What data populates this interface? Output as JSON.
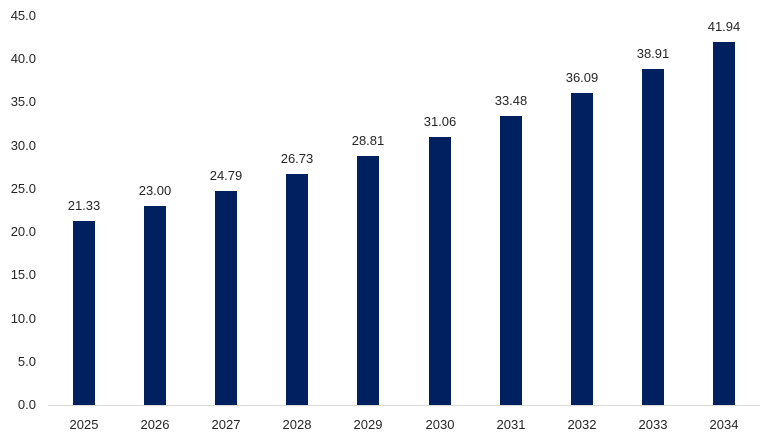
{
  "chart_data": {
    "type": "bar",
    "title": "",
    "xlabel": "",
    "ylabel": "",
    "categories": [
      "2025",
      "2026",
      "2027",
      "2028",
      "2029",
      "2030",
      "2031",
      "2032",
      "2033",
      "2034"
    ],
    "values": [
      21.33,
      23.0,
      24.79,
      26.73,
      28.81,
      31.06,
      33.48,
      36.09,
      38.91,
      41.94
    ],
    "value_labels": [
      "21.33",
      "23.00",
      "24.79",
      "26.73",
      "28.81",
      "31.06",
      "33.48",
      "36.09",
      "38.91",
      "41.94"
    ],
    "ylim": [
      0,
      45
    ],
    "ytick_step": 5,
    "ytick_labels": [
      "0.0",
      "5.0",
      "10.0",
      "15.0",
      "20.0",
      "25.0",
      "30.0",
      "35.0",
      "40.0",
      "45.0"
    ],
    "grid": false,
    "legend": false,
    "legend_position": "none",
    "bar_color": "#002060",
    "axis_line_color": "#d9d9d9",
    "label_color": "#262626"
  }
}
